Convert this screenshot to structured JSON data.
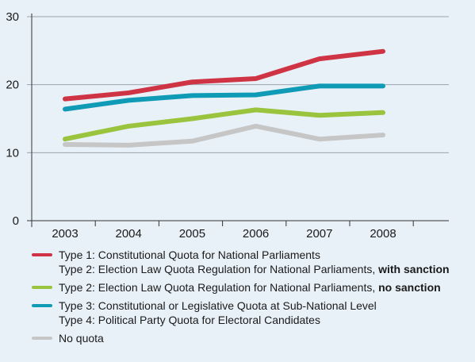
{
  "chart_data": {
    "type": "line",
    "x": [
      "2003",
      "2004",
      "2005",
      "2006",
      "2007",
      "2008"
    ],
    "ylim": [
      0,
      30
    ],
    "yticks": [
      0,
      10,
      20,
      30
    ],
    "grid": "horizontal",
    "series": [
      {
        "key": "type1",
        "color": "#cf3445",
        "values": [
          17.9,
          18.8,
          20.4,
          20.9,
          23.8,
          24.9
        ]
      },
      {
        "key": "type3",
        "color": "#0f9bb5",
        "values": [
          16.4,
          17.7,
          18.4,
          18.5,
          19.8,
          19.8
        ]
      },
      {
        "key": "type2ns",
        "color": "#9ac33e",
        "values": [
          12.0,
          13.9,
          15.0,
          16.3,
          15.5,
          15.9
        ]
      },
      {
        "key": "noquota",
        "color": "#c6c6c6",
        "values": [
          11.2,
          11.1,
          11.7,
          13.9,
          12.0,
          12.6
        ]
      }
    ]
  },
  "legend": {
    "items": [
      {
        "color": "#cf3445",
        "lines": [
          {
            "text": "Type 1: Constitutional Quota for National Parliaments",
            "bold": ""
          },
          {
            "text": "Type 2: Election Law Quota Regulation for National Parliaments, ",
            "bold": "with sanction"
          }
        ]
      },
      {
        "color": "#9ac33e",
        "lines": [
          {
            "text": "Type 2: Election Law Quota Regulation for National Parliaments, ",
            "bold": "no sanction"
          }
        ]
      },
      {
        "color": "#0f9bb5",
        "lines": [
          {
            "text": "Type 3: Constitutional or Legislative Quota at Sub-National Level",
            "bold": ""
          },
          {
            "text": "Type 4: Political Party Quota for Electoral Candidates",
            "bold": ""
          }
        ]
      },
      {
        "color": "#c6c6c6",
        "lines": [
          {
            "text": "No quota",
            "bold": ""
          }
        ]
      }
    ]
  }
}
